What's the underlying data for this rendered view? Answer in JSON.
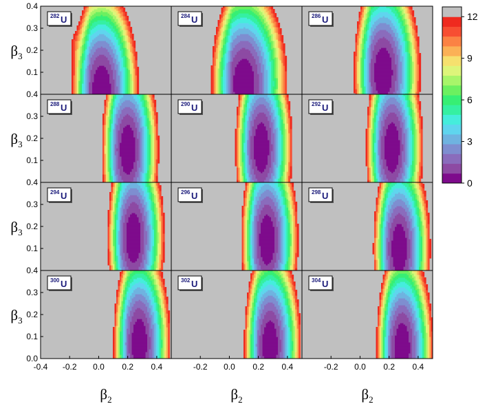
{
  "chart_data": {
    "type": "heatmap",
    "xlabel": "β2",
    "ylabel": "β3",
    "x_ticks": [
      "-0.4",
      "-0.2",
      "0.0",
      "0.2",
      "0.4"
    ],
    "y_ticks": [
      "0.0",
      "0.1",
      "0.2",
      "0.3",
      "0.4"
    ],
    "xlim": [
      -0.4,
      0.5
    ],
    "ylim": [
      0.0,
      0.4
    ],
    "colorbar": {
      "ticks": [
        "12",
        "9",
        "6",
        "3",
        "0"
      ],
      "range": [
        0,
        12
      ],
      "colors": [
        "#7e0b8c",
        "#8d4aa3",
        "#8a6cbc",
        "#7e8ed0",
        "#6fb3e0",
        "#5fd5ee",
        "#45eddc",
        "#35f0a2",
        "#37ef74",
        "#6cf060",
        "#a8f56a",
        "#ddf57a",
        "#f6e06e",
        "#fbb156",
        "#fb8244",
        "#f74e32",
        "#ef2a1f",
        "#c0c0c0"
      ]
    },
    "panels": [
      {
        "nucleus_mass": "282",
        "element": "U",
        "min_beta2": 0.02,
        "min_beta3": 0.02,
        "min_spread": 0.12
      },
      {
        "nucleus_mass": "284",
        "element": "U",
        "min_beta2": 0.1,
        "min_beta3": 0.05,
        "min_spread": 0.14
      },
      {
        "nucleus_mass": "286",
        "element": "U",
        "min_beta2": 0.16,
        "min_beta3": 0.1,
        "min_spread": 0.12
      },
      {
        "nucleus_mass": "288",
        "element": "U",
        "min_beta2": 0.2,
        "min_beta3": 0.15,
        "min_spread": 0.1
      },
      {
        "nucleus_mass": "290",
        "element": "U",
        "min_beta2": 0.22,
        "min_beta3": 0.16,
        "min_spread": 0.1
      },
      {
        "nucleus_mass": "292",
        "element": "U",
        "min_beta2": 0.22,
        "min_beta3": 0.16,
        "min_spread": 0.1
      },
      {
        "nucleus_mass": "294",
        "element": "U",
        "min_beta2": 0.24,
        "min_beta3": 0.15,
        "min_spread": 0.1
      },
      {
        "nucleus_mass": "296",
        "element": "U",
        "min_beta2": 0.26,
        "min_beta3": 0.14,
        "min_spread": 0.1
      },
      {
        "nucleus_mass": "298",
        "element": "U",
        "min_beta2": 0.27,
        "min_beta3": 0.1,
        "min_spread": 0.1
      },
      {
        "nucleus_mass": "300",
        "element": "U",
        "min_beta2": 0.28,
        "min_beta3": 0.07,
        "min_spread": 0.1
      },
      {
        "nucleus_mass": "302",
        "element": "U",
        "min_beta2": 0.28,
        "min_beta3": 0.06,
        "min_spread": 0.1
      },
      {
        "nucleus_mass": "304",
        "element": "U",
        "min_beta2": 0.29,
        "min_beta3": 0.05,
        "min_spread": 0.1
      }
    ]
  }
}
